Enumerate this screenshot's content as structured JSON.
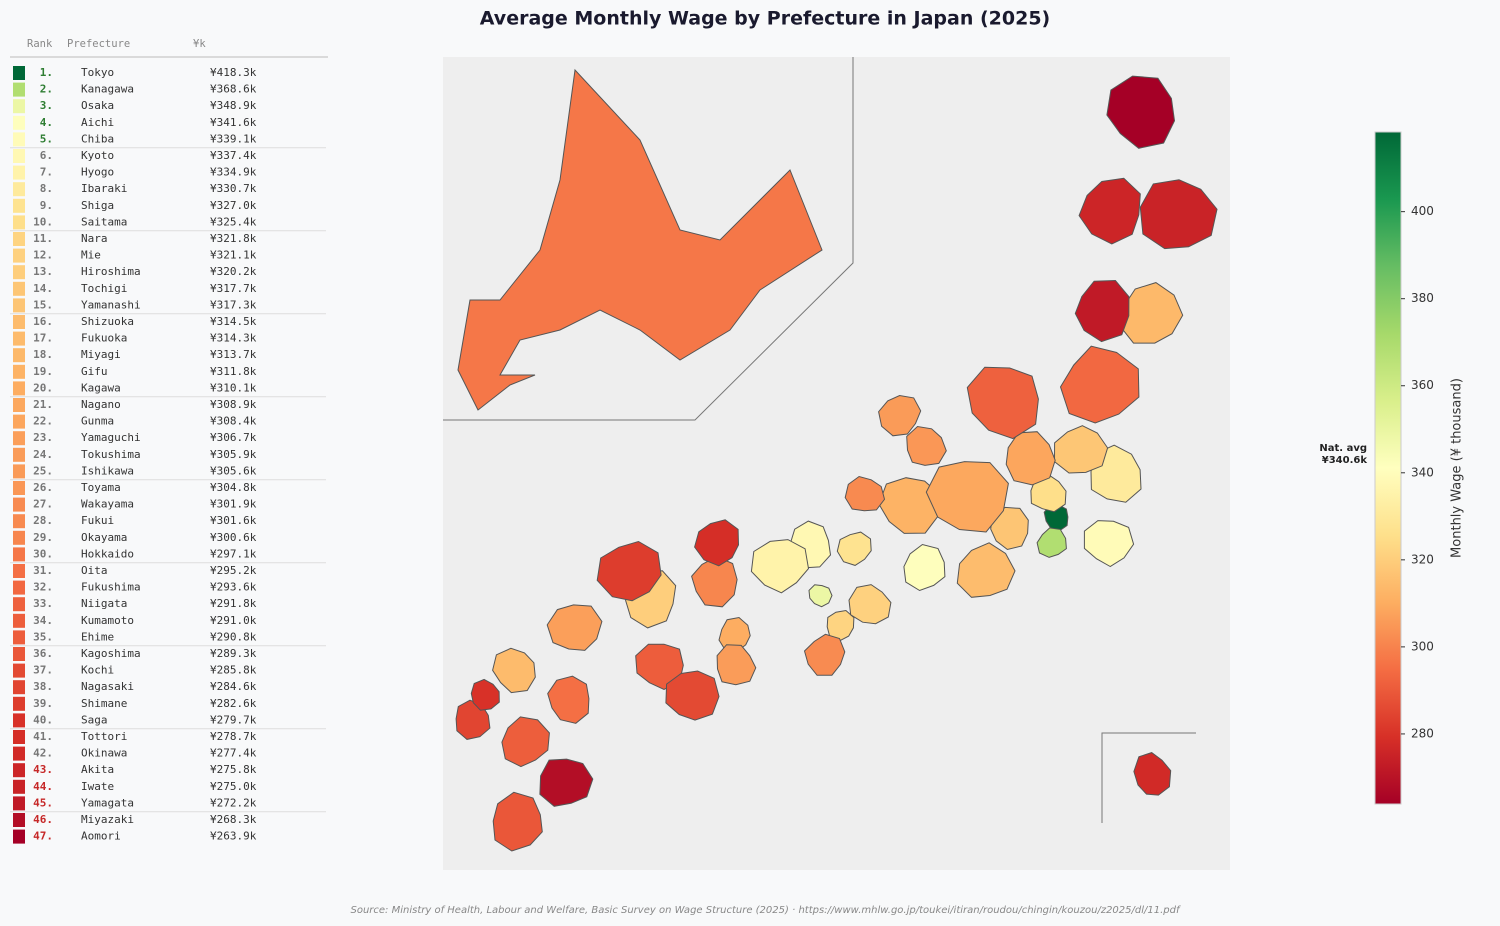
{
  "title": "Average Monthly Wage by Prefecture in Japan (2025)",
  "list_header": {
    "rank": "Rank",
    "prefecture": "Prefecture",
    "wage": "¥k"
  },
  "rows": [
    {
      "rank": "1.",
      "prefecture": "Tokyo",
      "wage": 418.3,
      "wage_label": "¥418.3k"
    },
    {
      "rank": "2.",
      "prefecture": "Kanagawa",
      "wage": 368.6,
      "wage_label": "¥368.6k"
    },
    {
      "rank": "3.",
      "prefecture": "Osaka",
      "wage": 348.9,
      "wage_label": "¥348.9k"
    },
    {
      "rank": "4.",
      "prefecture": "Aichi",
      "wage": 341.6,
      "wage_label": "¥341.6k"
    },
    {
      "rank": "5.",
      "prefecture": "Chiba",
      "wage": 339.1,
      "wage_label": "¥339.1k"
    },
    {
      "rank": "6.",
      "prefecture": "Kyoto",
      "wage": 337.4,
      "wage_label": "¥337.4k"
    },
    {
      "rank": "7.",
      "prefecture": "Hyogo",
      "wage": 334.9,
      "wage_label": "¥334.9k"
    },
    {
      "rank": "8.",
      "prefecture": "Ibaraki",
      "wage": 330.7,
      "wage_label": "¥330.7k"
    },
    {
      "rank": "9.",
      "prefecture": "Shiga",
      "wage": 327.0,
      "wage_label": "¥327.0k"
    },
    {
      "rank": "10.",
      "prefecture": "Saitama",
      "wage": 325.4,
      "wage_label": "¥325.4k"
    },
    {
      "rank": "11.",
      "prefecture": "Nara",
      "wage": 321.8,
      "wage_label": "¥321.8k"
    },
    {
      "rank": "12.",
      "prefecture": "Mie",
      "wage": 321.1,
      "wage_label": "¥321.1k"
    },
    {
      "rank": "13.",
      "prefecture": "Hiroshima",
      "wage": 320.2,
      "wage_label": "¥320.2k"
    },
    {
      "rank": "14.",
      "prefecture": "Tochigi",
      "wage": 317.7,
      "wage_label": "¥317.7k"
    },
    {
      "rank": "15.",
      "prefecture": "Yamanashi",
      "wage": 317.3,
      "wage_label": "¥317.3k"
    },
    {
      "rank": "16.",
      "prefecture": "Shizuoka",
      "wage": 314.5,
      "wage_label": "¥314.5k"
    },
    {
      "rank": "17.",
      "prefecture": "Fukuoka",
      "wage": 314.3,
      "wage_label": "¥314.3k"
    },
    {
      "rank": "18.",
      "prefecture": "Miyagi",
      "wage": 313.7,
      "wage_label": "¥313.7k"
    },
    {
      "rank": "19.",
      "prefecture": "Gifu",
      "wage": 311.8,
      "wage_label": "¥311.8k"
    },
    {
      "rank": "20.",
      "prefecture": "Kagawa",
      "wage": 310.1,
      "wage_label": "¥310.1k"
    },
    {
      "rank": "21.",
      "prefecture": "Nagano",
      "wage": 308.9,
      "wage_label": "¥308.9k"
    },
    {
      "rank": "22.",
      "prefecture": "Gunma",
      "wage": 308.4,
      "wage_label": "¥308.4k"
    },
    {
      "rank": "23.",
      "prefecture": "Yamaguchi",
      "wage": 306.7,
      "wage_label": "¥306.7k"
    },
    {
      "rank": "24.",
      "prefecture": "Tokushima",
      "wage": 305.9,
      "wage_label": "¥305.9k"
    },
    {
      "rank": "25.",
      "prefecture": "Ishikawa",
      "wage": 305.6,
      "wage_label": "¥305.6k"
    },
    {
      "rank": "26.",
      "prefecture": "Toyama",
      "wage": 304.8,
      "wage_label": "¥304.8k"
    },
    {
      "rank": "27.",
      "prefecture": "Wakayama",
      "wage": 301.9,
      "wage_label": "¥301.9k"
    },
    {
      "rank": "28.",
      "prefecture": "Fukui",
      "wage": 301.6,
      "wage_label": "¥301.6k"
    },
    {
      "rank": "29.",
      "prefecture": "Okayama",
      "wage": 300.6,
      "wage_label": "¥300.6k"
    },
    {
      "rank": "30.",
      "prefecture": "Hokkaido",
      "wage": 297.1,
      "wage_label": "¥297.1k"
    },
    {
      "rank": "31.",
      "prefecture": "Oita",
      "wage": 295.2,
      "wage_label": "¥295.2k"
    },
    {
      "rank": "32.",
      "prefecture": "Fukushima",
      "wage": 293.6,
      "wage_label": "¥293.6k"
    },
    {
      "rank": "33.",
      "prefecture": "Niigata",
      "wage": 291.8,
      "wage_label": "¥291.8k"
    },
    {
      "rank": "34.",
      "prefecture": "Kumamoto",
      "wage": 291.0,
      "wage_label": "¥291.0k"
    },
    {
      "rank": "35.",
      "prefecture": "Ehime",
      "wage": 290.8,
      "wage_label": "¥290.8k"
    },
    {
      "rank": "36.",
      "prefecture": "Kagoshima",
      "wage": 289.3,
      "wage_label": "¥289.3k"
    },
    {
      "rank": "37.",
      "prefecture": "Kochi",
      "wage": 285.8,
      "wage_label": "¥285.8k"
    },
    {
      "rank": "38.",
      "prefecture": "Nagasaki",
      "wage": 284.6,
      "wage_label": "¥284.6k"
    },
    {
      "rank": "39.",
      "prefecture": "Shimane",
      "wage": 282.6,
      "wage_label": "¥282.6k"
    },
    {
      "rank": "40.",
      "prefecture": "Saga",
      "wage": 279.7,
      "wage_label": "¥279.7k"
    },
    {
      "rank": "41.",
      "prefecture": "Tottori",
      "wage": 278.7,
      "wage_label": "¥278.7k"
    },
    {
      "rank": "42.",
      "prefecture": "Okinawa",
      "wage": 277.4,
      "wage_label": "¥277.4k"
    },
    {
      "rank": "43.",
      "prefecture": "Akita",
      "wage": 275.8,
      "wage_label": "¥275.8k"
    },
    {
      "rank": "44.",
      "prefecture": "Iwate",
      "wage": 275.0,
      "wage_label": "¥275.0k"
    },
    {
      "rank": "45.",
      "prefecture": "Yamagata",
      "wage": 272.2,
      "wage_label": "¥272.2k"
    },
    {
      "rank": "46.",
      "prefecture": "Miyazaki",
      "wage": 268.3,
      "wage_label": "¥268.3k"
    },
    {
      "rank": "47.",
      "prefecture": "Aomori",
      "wage": 263.9,
      "wage_label": "¥263.9k"
    }
  ],
  "colorbar": {
    "label": "Monthly Wage (¥ thousand)",
    "lim": [
      263.9,
      418.3
    ],
    "ticks": [
      280,
      300,
      320,
      340,
      360,
      380,
      400
    ]
  },
  "national_average": {
    "title": "Nat. avg",
    "value": 340.6,
    "label": "¥340.6k"
  },
  "source": "Source: Ministry of Health, Labour and Welfare, Basic Survey on Wage Structure (2025)  ·  https://www.mhlw.go.jp/toukei/itiran/roudou/chingin/kouzou/z2025/dl/11.pdf"
}
